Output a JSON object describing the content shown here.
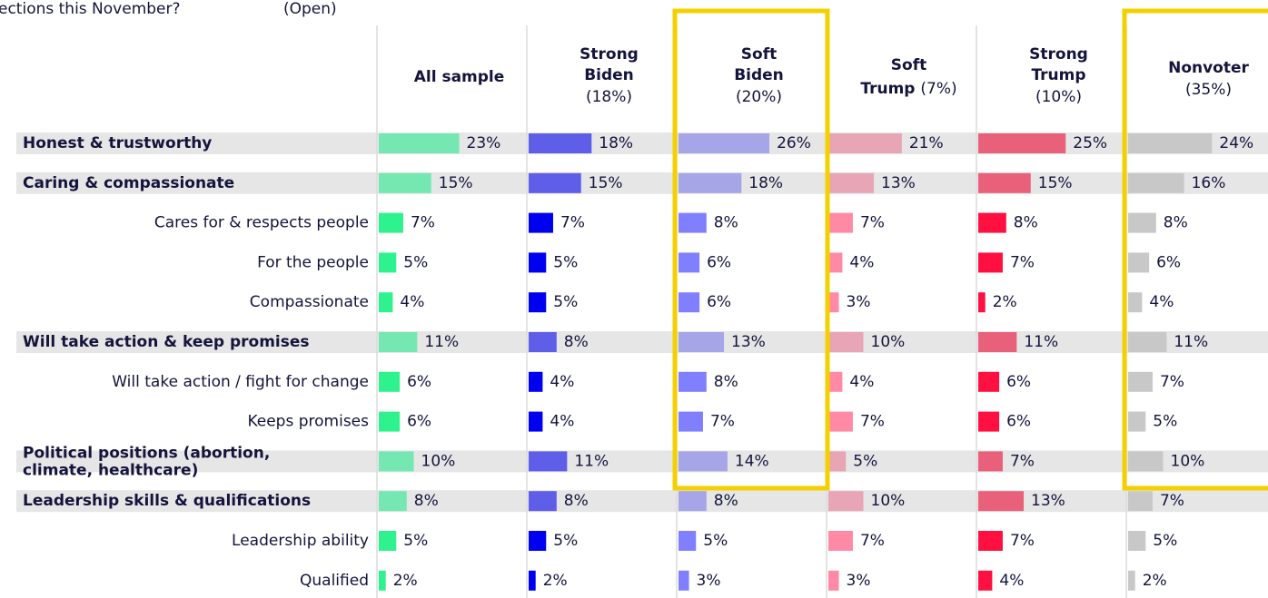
{
  "chart_data": {
    "type": "bar",
    "title": "ections this November?",
    "subtitle": "(Open)",
    "categories": [
      "Honest & trustworthy",
      "Caring & compassionate",
      "Cares for & respects people",
      "For the people",
      "Compassionate",
      "Will take action & keep promises",
      "Will take action / fight for change",
      "Keeps promises",
      "Political positions (abortion, climate, healthcare)",
      "Leadership skills & qualifications",
      "Leadership ability",
      "Qualified"
    ],
    "row_styles": [
      "main",
      "main",
      "sub",
      "sub",
      "sub",
      "main",
      "sub",
      "sub",
      "main",
      "main",
      "sub",
      "sub"
    ],
    "highlighted_series": [
      2,
      5
    ],
    "series": [
      {
        "name": "All sample",
        "colors": {
          "main": "#74e8b0",
          "sub": "#2ef28e"
        },
        "values": [
          23,
          15,
          7,
          5,
          4,
          11,
          6,
          6,
          10,
          8,
          5,
          2
        ],
        "value_labels": [
          "23%",
          "15%",
          "7%",
          "5%",
          "4%",
          "11%",
          "6%",
          "6%",
          "10%",
          "8%",
          "5%",
          "2%"
        ]
      },
      {
        "name": "Strong Biden",
        "note": "(18%)",
        "colors": {
          "main": "#5e5ee8",
          "sub": "#0000f0"
        },
        "values": [
          18,
          15,
          7,
          5,
          5,
          8,
          4,
          4,
          11,
          8,
          5,
          2
        ],
        "value_labels": [
          "18%",
          "15%",
          "7%",
          "5%",
          "5%",
          "8%",
          "4%",
          "4%",
          "11%",
          "8%",
          "5%",
          "2%"
        ]
      },
      {
        "name": "Soft Biden",
        "note": "(20%)",
        "colors": {
          "main": "#a5a5e8",
          "sub": "#8080ff"
        },
        "values": [
          26,
          18,
          8,
          6,
          6,
          13,
          8,
          7,
          14,
          8,
          5,
          3
        ],
        "value_labels": [
          "26%",
          "18%",
          "8%",
          "6%",
          "6%",
          "13%",
          "8%",
          "7%",
          "14%",
          "8%",
          "5%",
          "3%"
        ]
      },
      {
        "name": "Soft Trump",
        "note": "(7%)",
        "colors": {
          "main": "#e8a5b5",
          "sub": "#ff8aa5"
        },
        "values": [
          21,
          13,
          7,
          4,
          3,
          10,
          4,
          7,
          5,
          10,
          7,
          3
        ],
        "value_labels": [
          "21%",
          "13%",
          "7%",
          "4%",
          "3%",
          "10%",
          "4%",
          "7%",
          "5%",
          "10%",
          "7%",
          "3%"
        ]
      },
      {
        "name": "Strong Trump",
        "note": "(10%)",
        "colors": {
          "main": "#e8607a",
          "sub": "#ff1040"
        },
        "values": [
          25,
          15,
          8,
          7,
          2,
          11,
          6,
          6,
          7,
          13,
          7,
          4
        ],
        "value_labels": [
          "25%",
          "15%",
          "8%",
          "7%",
          "2%",
          "11%",
          "6%",
          "6%",
          "7%",
          "13%",
          "7%",
          "4%"
        ]
      },
      {
        "name": "Nonvoter",
        "note": "(35%)",
        "colors": {
          "main": "#c8c8c8",
          "sub": "#c8c8c8"
        },
        "values": [
          24,
          16,
          8,
          6,
          4,
          11,
          7,
          5,
          10,
          7,
          5,
          2
        ],
        "value_labels": [
          "24%",
          "16%",
          "8%",
          "6%",
          "4%",
          "11%",
          "7%",
          "5%",
          "10%",
          "7%",
          "5%",
          "2%"
        ]
      }
    ]
  }
}
